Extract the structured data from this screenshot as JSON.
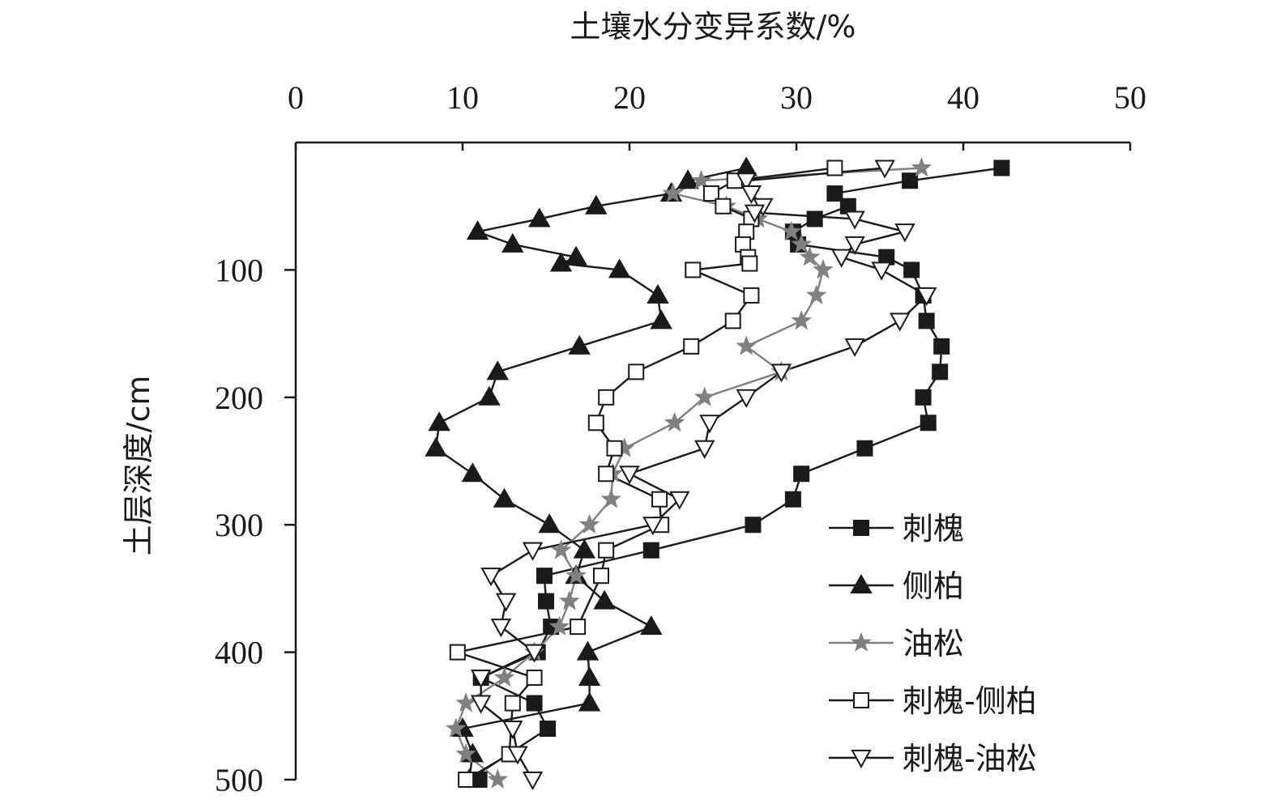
{
  "chart_data": {
    "type": "line",
    "xlabel": "土壤水分变异系数/%",
    "ylabel": "土层深度/cm",
    "x_axis_position": "top",
    "y_inverted": true,
    "xlim": [
      0,
      50
    ],
    "ylim": [
      0,
      500
    ],
    "xticks": [
      "0",
      "10",
      "20",
      "30",
      "40",
      "50"
    ],
    "yticks": [
      "100",
      "200",
      "300",
      "400",
      "500"
    ],
    "legend_position": "bottom-right",
    "colors": {
      "black": "#1a1a1a",
      "gray": "#808080",
      "white": "#ffffff"
    },
    "series": [
      {
        "name": "刺槐",
        "marker": "square-filled",
        "color": "#1a1a1a",
        "points": [
          [
            42.3,
            20
          ],
          [
            36.8,
            30
          ],
          [
            32.3,
            40
          ],
          [
            33.1,
            50
          ],
          [
            31.1,
            60
          ],
          [
            29.8,
            70
          ],
          [
            30.1,
            80
          ],
          [
            35.4,
            90
          ],
          [
            36.9,
            100
          ],
          [
            37.6,
            120
          ],
          [
            37.8,
            140
          ],
          [
            38.7,
            160
          ],
          [
            38.6,
            180
          ],
          [
            37.6,
            200
          ],
          [
            37.9,
            220
          ],
          [
            34.1,
            240
          ],
          [
            30.3,
            260
          ],
          [
            29.8,
            280
          ],
          [
            27.4,
            300
          ],
          [
            21.3,
            320
          ],
          [
            14.9,
            340
          ],
          [
            15.0,
            360
          ],
          [
            15.3,
            380
          ],
          [
            14.5,
            400
          ],
          [
            11.1,
            420
          ],
          [
            14.3,
            440
          ],
          [
            15.1,
            460
          ],
          [
            10.4,
            500
          ],
          [
            11.0,
            500
          ]
        ]
      },
      {
        "name": "侧柏",
        "marker": "triangle-filled",
        "color": "#1a1a1a",
        "points": [
          [
            27.0,
            20
          ],
          [
            23.5,
            30
          ],
          [
            22.5,
            40
          ],
          [
            18.0,
            50
          ],
          [
            14.6,
            60
          ],
          [
            10.9,
            70
          ],
          [
            13.0,
            80
          ],
          [
            16.8,
            90
          ],
          [
            15.9,
            95
          ],
          [
            19.4,
            100
          ],
          [
            21.7,
            120
          ],
          [
            21.9,
            140
          ],
          [
            17.0,
            160
          ],
          [
            12.1,
            180
          ],
          [
            11.6,
            200
          ],
          [
            8.6,
            220
          ],
          [
            8.4,
            240
          ],
          [
            10.6,
            260
          ],
          [
            12.5,
            280
          ],
          [
            15.2,
            300
          ],
          [
            17.3,
            320
          ],
          [
            16.8,
            340
          ],
          [
            18.5,
            360
          ],
          [
            21.3,
            380
          ],
          [
            17.5,
            400
          ],
          [
            17.6,
            420
          ],
          [
            17.6,
            440
          ],
          [
            10.0,
            460
          ],
          [
            10.6,
            480
          ],
          [
            10.4,
            500
          ]
        ]
      },
      {
        "name": "油松",
        "marker": "star",
        "color": "#808080",
        "points": [
          [
            37.5,
            20
          ],
          [
            24.3,
            30
          ],
          [
            22.6,
            40
          ],
          [
            25.8,
            50
          ],
          [
            27.7,
            60
          ],
          [
            29.7,
            70
          ],
          [
            30.3,
            80
          ],
          [
            30.8,
            90
          ],
          [
            31.6,
            100
          ],
          [
            31.2,
            120
          ],
          [
            30.3,
            140
          ],
          [
            27.0,
            160
          ],
          [
            29.1,
            180
          ],
          [
            24.5,
            200
          ],
          [
            22.7,
            220
          ],
          [
            19.7,
            240
          ],
          [
            19.0,
            260
          ],
          [
            18.9,
            280
          ],
          [
            17.6,
            300
          ],
          [
            15.9,
            320
          ],
          [
            16.8,
            340
          ],
          [
            16.4,
            360
          ],
          [
            15.8,
            380
          ],
          [
            14.3,
            400
          ],
          [
            12.5,
            420
          ],
          [
            10.2,
            440
          ],
          [
            9.6,
            460
          ],
          [
            10.2,
            480
          ],
          [
            12.1,
            500
          ]
        ]
      },
      {
        "name": "刺槐-侧柏",
        "marker": "square-open",
        "color": "#1a1a1a",
        "points": [
          [
            32.3,
            20
          ],
          [
            26.3,
            30
          ],
          [
            24.9,
            40
          ],
          [
            25.6,
            50
          ],
          [
            27.3,
            60
          ],
          [
            27.0,
            70
          ],
          [
            26.8,
            80
          ],
          [
            27.1,
            90
          ],
          [
            27.2,
            95
          ],
          [
            23.8,
            100
          ],
          [
            27.3,
            120
          ],
          [
            26.2,
            140
          ],
          [
            23.7,
            160
          ],
          [
            20.4,
            180
          ],
          [
            18.6,
            200
          ],
          [
            18.0,
            220
          ],
          [
            19.1,
            240
          ],
          [
            18.6,
            260
          ],
          [
            21.8,
            280
          ],
          [
            21.9,
            300
          ],
          [
            18.6,
            320
          ],
          [
            18.3,
            340
          ],
          [
            16.9,
            380
          ],
          [
            9.7,
            400
          ],
          [
            14.3,
            420
          ],
          [
            13.0,
            440
          ],
          [
            12.8,
            480
          ],
          [
            10.2,
            500
          ]
        ]
      },
      {
        "name": "刺槐-油松",
        "marker": "triangle-open",
        "color": "#1a1a1a",
        "points": [
          [
            35.3,
            20
          ],
          [
            27.0,
            30
          ],
          [
            27.3,
            40
          ],
          [
            28.0,
            50
          ],
          [
            27.5,
            55
          ],
          [
            33.5,
            60
          ],
          [
            36.5,
            70
          ],
          [
            33.5,
            80
          ],
          [
            32.7,
            90
          ],
          [
            35.1,
            100
          ],
          [
            37.8,
            120
          ],
          [
            36.2,
            140
          ],
          [
            33.5,
            160
          ],
          [
            29.1,
            180
          ],
          [
            27.0,
            200
          ],
          [
            24.8,
            220
          ],
          [
            24.5,
            240
          ],
          [
            20.0,
            260
          ],
          [
            23.0,
            280
          ],
          [
            21.4,
            300
          ],
          [
            14.2,
            320
          ],
          [
            11.7,
            340
          ],
          [
            12.6,
            360
          ],
          [
            12.3,
            380
          ],
          [
            14.3,
            400
          ],
          [
            11.1,
            420
          ],
          [
            11.1,
            440
          ],
          [
            13.0,
            460
          ],
          [
            13.3,
            480
          ],
          [
            14.2,
            500
          ]
        ]
      }
    ]
  }
}
